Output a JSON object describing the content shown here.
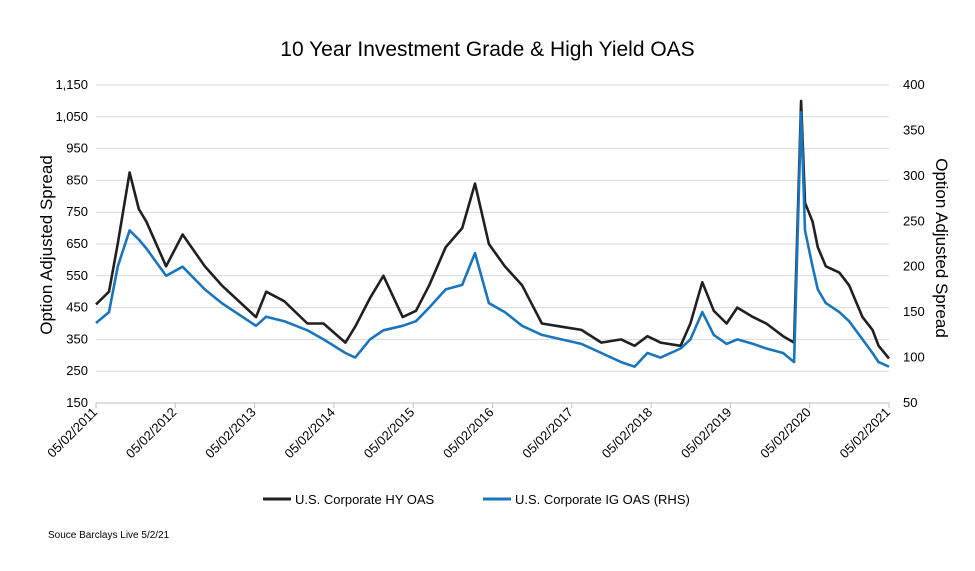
{
  "chart_data": {
    "type": "line",
    "title": "10 Year Investment Grade & High Yield OAS",
    "source": "Souce Barclays Live 5/2/21",
    "ylabel_left": "Option Adjusted Spread",
    "ylabel_right": "Option Adjusted Spread",
    "ylim_left": [
      150,
      1150
    ],
    "ylim_right": [
      50,
      400
    ],
    "yticks_left": [
      "150",
      "250",
      "350",
      "450",
      "550",
      "650",
      "750",
      "850",
      "950",
      "1,050",
      "1,150"
    ],
    "yticks_right": [
      "50",
      "100",
      "150",
      "200",
      "250",
      "300",
      "350",
      "400"
    ],
    "xticks": [
      "05/02/2011",
      "05/02/2012",
      "05/02/2013",
      "05/02/2014",
      "05/02/2015",
      "05/02/2016",
      "05/02/2017",
      "05/02/2018",
      "05/02/2019",
      "05/02/2020",
      "05/02/2021"
    ],
    "xlim": [
      "2011-05-02",
      "2021-05-02"
    ],
    "grid": "horizontal",
    "legend": "bottom",
    "series": [
      {
        "name": "U.S. Corporate HY OAS",
        "axis": "left",
        "color": "#231f20",
        "x": [
          "2011-05-02",
          "2011-07-01",
          "2011-08-10",
          "2011-10-04",
          "2011-11-15",
          "2011-12-20",
          "2012-03-20",
          "2012-06-04",
          "2012-09-14",
          "2012-12-01",
          "2013-05-08",
          "2013-06-24",
          "2013-09-15",
          "2013-12-31",
          "2014-03-15",
          "2014-06-24",
          "2014-08-08",
          "2014-10-15",
          "2014-12-16",
          "2015-03-15",
          "2015-05-15",
          "2015-07-15",
          "2015-09-29",
          "2015-12-14",
          "2016-02-11",
          "2016-04-15",
          "2016-06-27",
          "2016-09-15",
          "2016-12-15",
          "2017-03-15",
          "2017-06-15",
          "2017-09-15",
          "2017-12-15",
          "2018-02-15",
          "2018-04-15",
          "2018-06-15",
          "2018-09-15",
          "2018-10-30",
          "2018-12-24",
          "2019-02-15",
          "2019-04-15",
          "2019-06-03",
          "2019-08-15",
          "2019-10-15",
          "2019-12-31",
          "2020-02-20",
          "2020-03-23",
          "2020-04-10",
          "2020-05-15",
          "2020-06-08",
          "2020-07-15",
          "2020-09-15",
          "2020-10-30",
          "2020-12-31",
          "2021-02-15",
          "2021-03-15",
          "2021-05-02"
        ],
        "values": [
          460,
          500,
          650,
          875,
          760,
          720,
          580,
          680,
          580,
          520,
          420,
          500,
          470,
          400,
          400,
          340,
          390,
          480,
          550,
          420,
          440,
          520,
          640,
          700,
          840,
          650,
          580,
          520,
          400,
          390,
          380,
          340,
          350,
          330,
          360,
          340,
          330,
          400,
          530,
          440,
          400,
          450,
          420,
          400,
          360,
          340,
          1100,
          780,
          720,
          640,
          580,
          560,
          520,
          420,
          380,
          330,
          290
        ]
      },
      {
        "name": "U.S. Corporate IG OAS (RHS)",
        "axis": "right",
        "color": "#1b75bc",
        "x": [
          "2011-05-02",
          "2011-07-01",
          "2011-08-10",
          "2011-10-04",
          "2011-11-15",
          "2011-12-20",
          "2012-03-20",
          "2012-06-04",
          "2012-09-14",
          "2012-12-01",
          "2013-05-08",
          "2013-06-24",
          "2013-09-15",
          "2013-12-31",
          "2014-03-15",
          "2014-06-24",
          "2014-08-08",
          "2014-10-15",
          "2014-12-16",
          "2015-03-15",
          "2015-05-15",
          "2015-07-15",
          "2015-09-29",
          "2015-12-14",
          "2016-02-11",
          "2016-04-15",
          "2016-06-27",
          "2016-09-15",
          "2016-12-15",
          "2017-03-15",
          "2017-06-15",
          "2017-09-15",
          "2017-12-15",
          "2018-02-15",
          "2018-04-15",
          "2018-06-15",
          "2018-09-15",
          "2018-10-30",
          "2018-12-24",
          "2019-02-15",
          "2019-04-15",
          "2019-06-03",
          "2019-08-15",
          "2019-10-15",
          "2019-12-31",
          "2020-02-20",
          "2020-03-23",
          "2020-04-10",
          "2020-05-15",
          "2020-06-08",
          "2020-07-15",
          "2020-09-15",
          "2020-10-30",
          "2020-12-31",
          "2021-02-15",
          "2021-03-15",
          "2021-05-02"
        ],
        "values": [
          138,
          150,
          200,
          240,
          230,
          220,
          190,
          200,
          175,
          160,
          135,
          145,
          140,
          130,
          120,
          105,
          100,
          120,
          130,
          135,
          140,
          155,
          175,
          180,
          215,
          160,
          150,
          135,
          125,
          120,
          115,
          105,
          95,
          90,
          105,
          100,
          110,
          120,
          150,
          125,
          115,
          120,
          115,
          110,
          105,
          95,
          370,
          240,
          200,
          175,
          160,
          150,
          140,
          120,
          105,
          95,
          90
        ]
      }
    ]
  }
}
